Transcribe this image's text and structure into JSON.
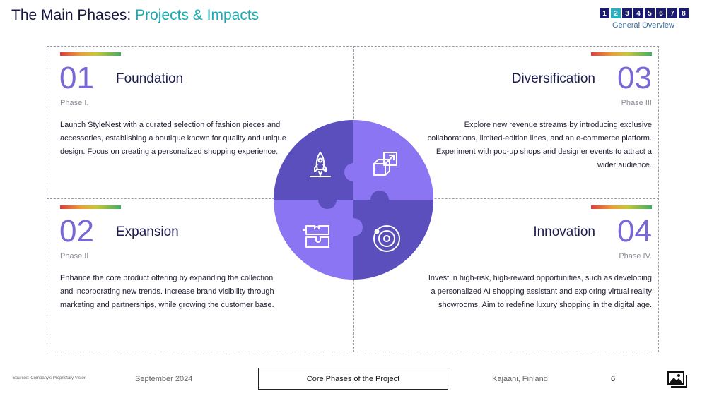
{
  "header": {
    "title_main": "The Main Phases: ",
    "title_accent": "Projects & Impacts",
    "pager": [
      "1",
      "2",
      "3",
      "4",
      "5",
      "6",
      "7",
      "8"
    ],
    "pager_active_index": 1,
    "pager_label": "General Overview"
  },
  "phases": [
    {
      "number": "01",
      "title": "Foundation",
      "subtitle": "Phase I.",
      "body": "Launch StyleNest with a curated selection of fashion pieces and accessories, establishing a boutique known for quality and unique design. Focus on creating a personalized shopping experience.",
      "icon": "rocket-icon"
    },
    {
      "number": "02",
      "title": "Expansion",
      "subtitle": "Phase II",
      "body": "Enhance the core product offering by expanding the collection and incorporating new trends. Increase brand visibility through marketing and partnerships, while growing the customer base.",
      "icon": "puzzle-pieces-icon"
    },
    {
      "number": "03",
      "title": "Diversification",
      "subtitle": "Phase III",
      "body": "Explore new revenue streams by introducing exclusive collaborations, limited-edition lines, and an e-commerce platform. Experiment with pop-up shops and designer events to attract a wider audience.",
      "icon": "cubes-arrow-icon"
    },
    {
      "number": "04",
      "title": "Innovation",
      "subtitle": "Phase IV.",
      "body": "Invest in high-risk, high-reward opportunities, such as developing a personalized AI shopping assistant and exploring virtual reality showrooms. Aim to redefine luxury shopping in the digital age.",
      "icon": "orbit-icon"
    }
  ],
  "colors": {
    "puzzle_dark": "#5b4fbe",
    "puzzle_light": "#8b75f2",
    "number": "#7b66d8",
    "accent": "#1aaab4"
  },
  "footer": {
    "sources": "Sources: Company's Proprietary Vision",
    "date": "September 2024",
    "center_label": "Core Phases of the Project",
    "location": "Kajaani, Finland",
    "page": "6",
    "icon": "image-gallery-icon"
  }
}
